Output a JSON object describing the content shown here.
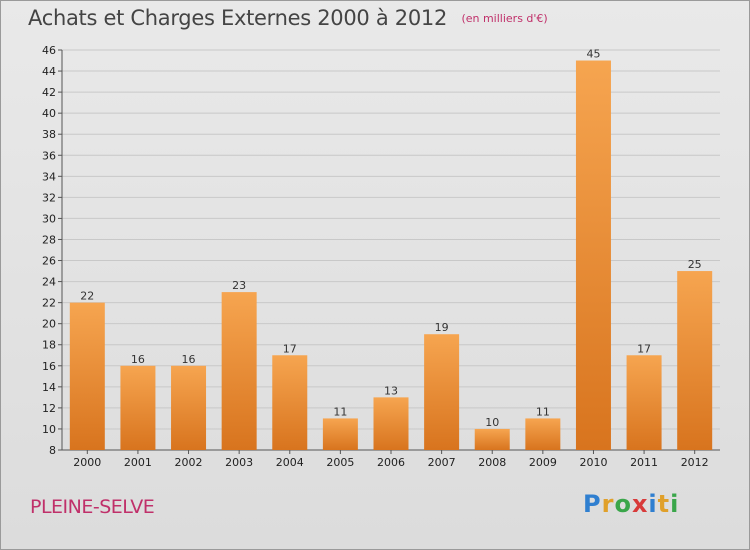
{
  "header": {
    "title": "Achats et Charges Externes 2000 à 2012",
    "subtitle": "(en milliers d'€)"
  },
  "footer": {
    "commune": "PLEINE-SELVE",
    "logo_letters": [
      "P",
      "r",
      "o",
      "x",
      "i",
      "t",
      "i"
    ],
    "logo_colors": [
      "#2f7fd0",
      "#e0a02a",
      "#3aa64a",
      "#d83a3a",
      "#2f7fd0",
      "#e0a02a",
      "#3aa64a"
    ]
  },
  "colors": {
    "bar_top": "#f6a550",
    "bar_bottom": "#d8741e",
    "grid": "#c8c8c8",
    "accent": "#c0306a"
  },
  "chart_data": {
    "type": "bar",
    "title": "Achats et Charges Externes 2000 à 2012",
    "subtitle": "(en milliers d'€)",
    "categories": [
      "2000",
      "2001",
      "2002",
      "2003",
      "2004",
      "2005",
      "2006",
      "2007",
      "2008",
      "2009",
      "2010",
      "2011",
      "2012"
    ],
    "values": [
      22,
      16,
      16,
      23,
      17,
      11,
      13,
      19,
      10,
      11,
      45,
      17,
      25
    ],
    "ylim": [
      8,
      46
    ],
    "yticks": [
      8,
      10,
      12,
      14,
      16,
      18,
      20,
      22,
      24,
      26,
      28,
      30,
      32,
      34,
      36,
      38,
      40,
      42,
      44,
      46
    ],
    "grid": true,
    "xlabel": "",
    "ylabel": ""
  }
}
